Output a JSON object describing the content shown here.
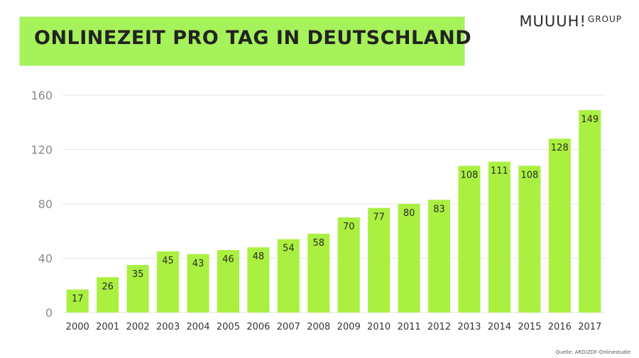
{
  "header": {
    "title": "ONLINEZEIT PRO TAG IN DEUTSCHLAND",
    "brand": "MUUUH!",
    "brand_sub": "GROUP"
  },
  "footer": {
    "source": "Quelle: ARD/ZDF-Onlinestudie"
  },
  "colors": {
    "bar": "#aaf040",
    "banner": "#a6f25a",
    "grid": "#e6e6e6"
  },
  "chart_data": {
    "type": "bar",
    "title": "ONLINEZEIT PRO TAG IN DEUTSCHLAND",
    "xlabel": "",
    "ylabel": "",
    "categories": [
      "2000",
      "2001",
      "2002",
      "2003",
      "2004",
      "2005",
      "2006",
      "2007",
      "2008",
      "2009",
      "2010",
      "2011",
      "2012",
      "2013",
      "2014",
      "2015",
      "2016",
      "2017"
    ],
    "values": [
      17,
      26,
      35,
      45,
      43,
      46,
      48,
      54,
      58,
      70,
      77,
      80,
      83,
      108,
      111,
      108,
      128,
      149
    ],
    "ylim": [
      0,
      160
    ],
    "yticks": [
      0,
      40,
      80,
      120,
      160
    ],
    "grid": true,
    "legend": "none"
  }
}
